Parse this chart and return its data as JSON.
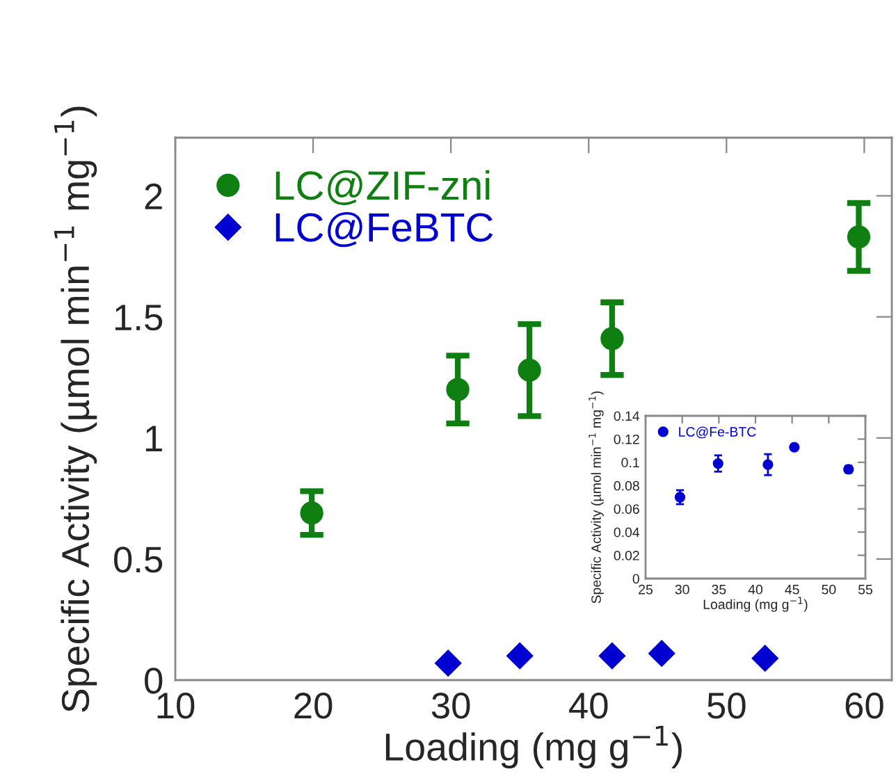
{
  "chart_data": [
    {
      "type": "scatter",
      "xlabel": "Loading (mg g$^{−1}$)",
      "ylabel": "Specific Activity (µmol min$^{−1}$ mg$^{−1}$)",
      "xlim": [
        10,
        62
      ],
      "xticks": [
        10,
        20,
        30,
        40,
        50,
        60
      ],
      "ylim": [
        0,
        2.24
      ],
      "yticks": [
        0,
        0.5,
        1,
        1.5,
        2
      ],
      "legend": "top left",
      "grid": false,
      "series": [
        {
          "name": "LC@ZIF-zni",
          "color": "#0f7f12",
          "marker": "circle",
          "x": [
            19.9,
            30.5,
            35.7,
            41.7,
            59.6
          ],
          "values": [
            0.69,
            1.2,
            1.28,
            1.41,
            1.83
          ],
          "errors": [
            0.09,
            0.14,
            0.19,
            0.15,
            0.14
          ]
        },
        {
          "name": "LC@FeBTC",
          "color": "#0000d0",
          "marker": "diamond",
          "x": [
            29.8,
            35.0,
            41.7,
            45.3,
            52.8
          ],
          "values": [
            0.07,
            0.1,
            0.1,
            0.11,
            0.09
          ]
        }
      ]
    },
    {
      "type": "scatter",
      "xlabel": "Loading (mg g$^{−1}$)",
      "ylabel": "Specific Activity (µmol min$^{−1}$ mg$^{−1}$)",
      "xlim": [
        25,
        55
      ],
      "xticks": [
        25,
        30,
        35,
        40,
        45,
        50,
        55
      ],
      "ylim": [
        0,
        0.14
      ],
      "yticks": [
        0,
        0.02,
        0.04,
        0.06,
        0.08,
        0.1,
        0.12,
        0.14
      ],
      "legend": "top left",
      "grid": false,
      "series": [
        {
          "name": "LC@Fe-BTC",
          "color": "#0000d0",
          "marker": "circle",
          "x": [
            29.7,
            34.9,
            41.7,
            45.3,
            52.7
          ],
          "values": [
            0.07,
            0.099,
            0.098,
            0.113,
            0.094
          ],
          "errors": [
            0.006,
            0.007,
            0.009,
            null,
            0.003
          ]
        }
      ]
    }
  ]
}
